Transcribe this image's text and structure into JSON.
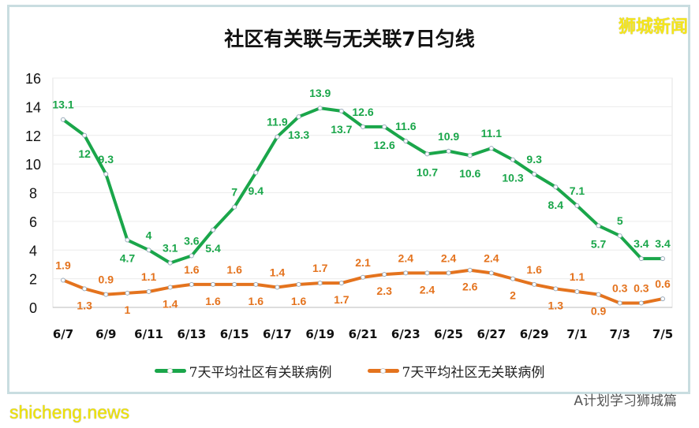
{
  "brand": "狮城新闻",
  "wechat": "A计划学习狮城篇",
  "watermark": "shicheng.news",
  "chart_data": {
    "type": "line",
    "title": "社区有关联与无关联7日匀线",
    "x": [
      "6/7",
      "6/8",
      "6/9",
      "6/10",
      "6/11",
      "6/12",
      "6/13",
      "6/14",
      "6/15",
      "6/16",
      "6/17",
      "6/18",
      "6/19",
      "6/20",
      "6/21",
      "6/22",
      "6/23",
      "6/24",
      "6/25",
      "6/26",
      "6/27",
      "6/28",
      "6/29",
      "6/30",
      "7/1",
      "7/2",
      "7/3",
      "7/4",
      "7/5"
    ],
    "xticks": [
      "6/7",
      "6/9",
      "6/11",
      "6/13",
      "6/15",
      "6/17",
      "6/19",
      "6/21",
      "6/23",
      "6/25",
      "6/27",
      "6/29",
      "7/1",
      "7/3",
      "7/5"
    ],
    "ylim": [
      0,
      16
    ],
    "yticks": [
      0,
      2,
      4,
      6,
      8,
      10,
      12,
      14,
      16
    ],
    "grid": true,
    "legend": "bottom",
    "series": [
      {
        "name": "7天平均社区有关联病例",
        "color": "#1aa64a",
        "values": [
          13.1,
          12,
          9.3,
          4.7,
          4,
          3.1,
          3.6,
          5.4,
          7,
          9.4,
          11.9,
          13.3,
          13.9,
          13.7,
          12.6,
          12.6,
          11.6,
          10.7,
          10.9,
          10.6,
          11.1,
          10.3,
          9.3,
          8.4,
          7.1,
          5.7,
          5,
          3.4,
          3.4
        ]
      },
      {
        "name": "7天平均社区无关联病例",
        "color": "#e4731e",
        "values": [
          1.9,
          1.3,
          0.9,
          1,
          1.1,
          1.4,
          1.6,
          1.6,
          1.6,
          1.6,
          1.4,
          1.6,
          1.7,
          1.7,
          2.1,
          2.3,
          2.4,
          2.4,
          2.4,
          2.6,
          2.4,
          2,
          1.6,
          1.3,
          1.1,
          0.9,
          0.3,
          0.3,
          0.6
        ]
      }
    ]
  }
}
